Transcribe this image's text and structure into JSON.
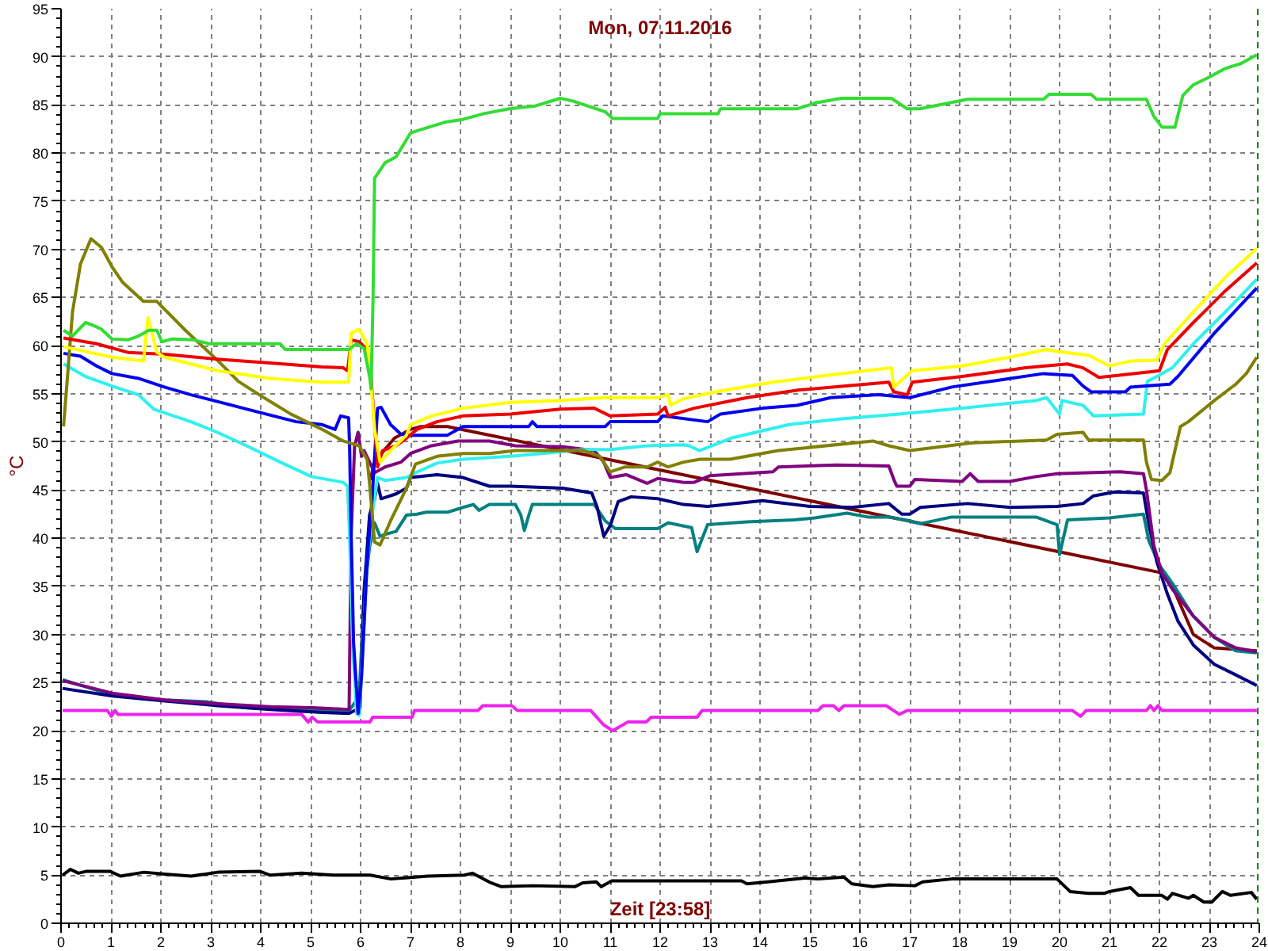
{
  "chart_data": {
    "type": "line",
    "title": "Mon, 07.11.2016",
    "xlabel": "Zeit [23:58]",
    "ylabel": "°C",
    "xlim": [
      0,
      24
    ],
    "ylim": [
      0,
      95
    ],
    "xticks": [
      0,
      1,
      2,
      3,
      4,
      5,
      6,
      7,
      8,
      9,
      10,
      11,
      12,
      13,
      14,
      15,
      16,
      17,
      18,
      19,
      20,
      21,
      22,
      23,
      24
    ],
    "yticks": [
      0,
      5,
      10,
      15,
      20,
      25,
      30,
      35,
      40,
      45,
      50,
      55,
      60,
      65,
      70,
      75,
      80,
      85,
      90,
      95
    ],
    "grid": true,
    "line_style": "solid",
    "ref_lines": [
      {
        "axis": "x",
        "value": 23.97,
        "color": "#008000",
        "line_style": "dashed"
      }
    ],
    "series": [
      {
        "color": "#000000",
        "x": [
          0.03,
          0.19,
          0.35,
          0.51,
          0.98,
          1.19,
          1.66,
          2.08,
          2.61,
          3.14,
          3.98,
          4.19,
          4.82,
          5.45,
          6.19,
          6.61,
          7.35,
          8.08,
          8.24,
          8.61,
          8.82,
          9.45,
          10.29,
          10.45,
          10.72,
          10.82,
          11.03,
          12.0,
          13.63,
          13.74,
          14.16,
          14.89,
          15.16,
          15.68,
          15.84,
          16.26,
          16.58,
          17.1,
          17.26,
          17.84,
          19.95,
          20.21,
          20.58,
          20.89,
          21.0,
          21.42,
          21.58,
          22.05,
          22.16,
          22.26,
          22.58,
          22.68,
          22.89,
          23.05,
          23.26,
          23.42,
          23.84,
          23.95
        ],
        "values": [
          5.0,
          5.6,
          5.2,
          5.4,
          5.4,
          4.9,
          5.3,
          5.1,
          4.9,
          5.3,
          5.4,
          5.0,
          5.2,
          5.0,
          5.0,
          4.6,
          4.9,
          5.0,
          5.2,
          4.2,
          3.8,
          3.9,
          3.8,
          4.2,
          4.3,
          3.8,
          4.4,
          4.4,
          4.4,
          4.1,
          4.3,
          4.7,
          4.6,
          4.8,
          4.1,
          3.8,
          4.0,
          3.9,
          4.3,
          4.6,
          4.6,
          3.3,
          3.1,
          3.1,
          3.3,
          3.7,
          2.9,
          2.9,
          2.5,
          3.1,
          2.6,
          2.9,
          2.2,
          2.2,
          3.3,
          2.9,
          3.2,
          2.5
        ]
      },
      {
        "color": "#ee22ee",
        "x": [
          0.03,
          0.93,
          1.01,
          1.08,
          1.14,
          4.82,
          4.95,
          5.03,
          5.14,
          6.19,
          6.24,
          7.03,
          7.08,
          8.35,
          8.45,
          9.03,
          9.14,
          10.61,
          10.87,
          11.05,
          11.35,
          11.72,
          11.82,
          12.74,
          12.84,
          15.16,
          15.26,
          15.47,
          15.58,
          15.68,
          16.53,
          16.79,
          16.95,
          20.26,
          20.42,
          20.53,
          21.74,
          21.82,
          21.89,
          21.97,
          22.05,
          23.95
        ],
        "values": [
          22.1,
          22.1,
          21.5,
          22.1,
          21.7,
          21.7,
          20.9,
          21.4,
          20.9,
          20.9,
          21.4,
          21.4,
          22.1,
          22.1,
          22.6,
          22.6,
          22.1,
          22.1,
          20.6,
          20.0,
          20.9,
          20.9,
          21.4,
          21.4,
          22.1,
          22.1,
          22.6,
          22.6,
          22.1,
          22.6,
          22.6,
          21.7,
          22.1,
          22.1,
          21.5,
          22.1,
          22.1,
          22.6,
          22.1,
          22.6,
          22.1,
          22.1
        ]
      },
      {
        "color": "#800000",
        "x": [
          6.2,
          6.26,
          6.37,
          6.68,
          7.0,
          7.21,
          7.74,
          22.05,
          22.31,
          22.52,
          22.68,
          23.1,
          23.95
        ],
        "values": [
          46.0,
          47.7,
          48.5,
          50.4,
          51.3,
          51.6,
          51.6,
          36.4,
          34.4,
          31.9,
          30.0,
          28.6,
          28.3
        ]
      },
      {
        "color": "#008080",
        "x": [
          0.03,
          1.03,
          2.08,
          2.93,
          3.67,
          4.61,
          5.77,
          5.97,
          6.07,
          6.18,
          6.28,
          6.39,
          6.49,
          6.71,
          6.92,
          7.13,
          7.32,
          7.74,
          8.05,
          8.26,
          8.37,
          8.58,
          9.1,
          9.21,
          9.28,
          9.37,
          9.44,
          10.68,
          10.9,
          11.1,
          11.95,
          12.16,
          12.63,
          12.74,
          12.95,
          13.74,
          14.68,
          15.1,
          15.74,
          16.16,
          16.58,
          17.0,
          17.21,
          17.84,
          18.26,
          19.53,
          19.95,
          20.0,
          20.16,
          21.0,
          21.68,
          21.79,
          22.0,
          22.26,
          22.68,
          23.1,
          23.53,
          23.95
        ],
        "values": [
          25.3,
          23.7,
          23.2,
          23.0,
          22.4,
          22.2,
          22.1,
          23.5,
          34.1,
          39.1,
          41.6,
          40.2,
          40.4,
          40.7,
          42.4,
          42.5,
          42.7,
          42.7,
          43.2,
          43.5,
          42.9,
          43.5,
          43.5,
          42.4,
          40.8,
          42.4,
          43.5,
          43.5,
          41.8,
          41.0,
          41.0,
          41.6,
          41.1,
          38.6,
          41.4,
          41.7,
          41.9,
          42.1,
          42.6,
          42.2,
          42.2,
          41.8,
          41.5,
          42.2,
          42.2,
          42.2,
          41.4,
          38.3,
          41.9,
          42.1,
          42.5,
          39.7,
          37.2,
          35.3,
          31.9,
          29.7,
          28.3,
          28.1
        ]
      },
      {
        "color": "#000080",
        "x": [
          0.03,
          1.03,
          2.08,
          3.14,
          4.19,
          5.24,
          5.77,
          5.99,
          6.07,
          6.18,
          6.28,
          6.34,
          6.41,
          6.71,
          6.92,
          7.0,
          7.53,
          8.05,
          8.58,
          9.0,
          10.05,
          10.63,
          10.74,
          10.87,
          11.0,
          11.16,
          11.42,
          11.95,
          12.47,
          12.95,
          14.05,
          15.0,
          15.84,
          16.58,
          16.84,
          17.0,
          17.21,
          18.16,
          19.0,
          19.95,
          20.47,
          20.68,
          21.11,
          21.68,
          21.79,
          21.95,
          22.16,
          22.37,
          22.68,
          23.1,
          23.53,
          23.95
        ],
        "values": [
          24.4,
          23.6,
          23.1,
          22.6,
          22.2,
          21.9,
          21.8,
          22.4,
          34.6,
          42.4,
          44.1,
          45.7,
          44.1,
          44.6,
          45.2,
          46.3,
          46.6,
          46.3,
          45.4,
          45.4,
          45.2,
          44.7,
          43.2,
          40.2,
          41.3,
          43.8,
          44.3,
          44.1,
          43.5,
          43.3,
          43.9,
          43.3,
          43.2,
          43.6,
          42.5,
          42.5,
          43.2,
          43.6,
          43.2,
          43.3,
          43.6,
          44.4,
          44.8,
          44.7,
          41.4,
          37.5,
          34.2,
          31.4,
          28.9,
          26.9,
          25.8,
          24.7
        ]
      },
      {
        "color": "#800080",
        "x": [
          0.03,
          1.03,
          2.08,
          3.14,
          4.19,
          5.03,
          5.77,
          5.81,
          5.88,
          5.95,
          6.02,
          6.07,
          6.18,
          6.28,
          6.49,
          6.81,
          7.0,
          7.42,
          7.95,
          8.58,
          9.1,
          10.05,
          10.68,
          10.87,
          11.0,
          11.32,
          11.74,
          11.95,
          12.47,
          12.68,
          13.0,
          14.26,
          14.37,
          15.53,
          16.58,
          16.68,
          16.74,
          17.0,
          17.1,
          18.05,
          18.21,
          18.37,
          19.0,
          19.53,
          19.95,
          20.58,
          21.21,
          21.68,
          21.74,
          21.89,
          22.05,
          22.26,
          22.68,
          23.1,
          23.53,
          23.95
        ],
        "values": [
          25.2,
          23.9,
          23.2,
          22.8,
          22.5,
          22.4,
          22.2,
          40.2,
          49.6,
          51.0,
          48.5,
          49.1,
          47.9,
          46.8,
          47.4,
          47.9,
          48.8,
          49.6,
          50.1,
          50.1,
          49.6,
          49.5,
          49.1,
          47.9,
          46.3,
          46.6,
          45.7,
          46.2,
          45.8,
          45.8,
          46.5,
          46.9,
          47.4,
          47.6,
          47.5,
          46.1,
          45.4,
          45.4,
          46.1,
          45.9,
          46.7,
          45.9,
          45.9,
          46.4,
          46.7,
          46.8,
          46.9,
          46.7,
          45.0,
          39.2,
          36.4,
          34.7,
          31.9,
          29.7,
          28.6,
          28.2
        ]
      },
      {
        "color": "#30f0f0",
        "x": [
          0.05,
          0.49,
          1.02,
          1.55,
          1.86,
          2.6,
          3.13,
          3.76,
          4.39,
          5.02,
          5.65,
          5.74,
          5.78,
          5.84,
          5.92,
          5.97,
          6.02,
          6.13,
          6.23,
          6.34,
          6.49,
          6.92,
          7.1,
          7.53,
          8.05,
          9.0,
          9.63,
          10.47,
          11.0,
          11.74,
          12.47,
          12.58,
          12.79,
          13.42,
          14.58,
          15.63,
          16.79,
          18.05,
          19.53,
          19.74,
          20.0,
          20.05,
          20.47,
          20.68,
          21.68,
          21.76,
          21.95,
          22.26,
          22.68,
          23.32,
          23.95
        ],
        "values": [
          58.1,
          56.8,
          55.8,
          54.9,
          53.4,
          52.1,
          51.0,
          49.5,
          47.9,
          46.4,
          45.8,
          45.4,
          40.2,
          29.1,
          21.8,
          21.6,
          26.3,
          37.4,
          42.4,
          46.3,
          46.0,
          46.3,
          46.8,
          47.8,
          48.2,
          48.5,
          48.8,
          49.2,
          49.2,
          49.6,
          49.7,
          49.6,
          49.1,
          50.4,
          51.8,
          52.4,
          52.9,
          53.5,
          54.3,
          54.6,
          52.9,
          54.3,
          53.8,
          52.7,
          52.9,
          56.3,
          56.8,
          57.7,
          60.2,
          63.5,
          66.9
        ]
      },
      {
        "color": "#0000ee",
        "x": [
          0.05,
          0.39,
          0.71,
          1.02,
          1.55,
          2.07,
          2.6,
          3.13,
          3.65,
          4.18,
          4.71,
          5.23,
          5.49,
          5.6,
          5.76,
          5.78,
          5.81,
          5.86,
          5.95,
          6.02,
          6.13,
          6.23,
          6.34,
          6.41,
          6.6,
          6.81,
          7.0,
          7.74,
          8.05,
          9.37,
          9.44,
          9.53,
          10.9,
          11.0,
          11.95,
          12.05,
          12.95,
          13.21,
          14.05,
          14.74,
          15.42,
          16.37,
          17.0,
          17.84,
          18.89,
          19.68,
          20.26,
          20.47,
          20.63,
          21.32,
          21.42,
          22.21,
          22.37,
          23.1,
          23.95
        ],
        "values": [
          59.2,
          58.9,
          57.9,
          57.1,
          56.6,
          55.7,
          54.9,
          54.2,
          53.5,
          52.8,
          52.1,
          51.8,
          51.3,
          52.7,
          52.5,
          49.6,
          40.7,
          29.1,
          21.8,
          25.7,
          37.4,
          44.1,
          53.5,
          53.6,
          51.8,
          50.8,
          50.7,
          50.7,
          51.6,
          51.6,
          52.1,
          51.6,
          51.6,
          52.1,
          52.1,
          52.7,
          52.1,
          52.9,
          53.5,
          53.8,
          54.6,
          54.9,
          54.6,
          55.7,
          56.5,
          57.1,
          56.9,
          55.8,
          55.2,
          55.2,
          55.7,
          56.0,
          56.8,
          61.3,
          66.0
        ]
      },
      {
        "color": "#808000",
        "x": [
          0.05,
          0.13,
          0.23,
          0.39,
          0.6,
          0.81,
          1.02,
          1.23,
          1.65,
          1.92,
          2.49,
          3.13,
          3.55,
          3.97,
          4.6,
          5.23,
          5.65,
          5.97,
          6.13,
          6.18,
          6.28,
          6.39,
          6.6,
          6.92,
          7.1,
          7.53,
          8.05,
          8.58,
          9.1,
          10.47,
          10.79,
          11.0,
          11.3,
          11.74,
          11.95,
          12.16,
          12.47,
          12.8,
          13.4,
          14.37,
          16.26,
          16.58,
          17.0,
          18.26,
          19.74,
          19.95,
          20.47,
          20.58,
          21.68,
          21.74,
          21.84,
          22.05,
          22.21,
          22.42,
          22.58,
          23.1,
          23.53,
          23.74,
          23.95
        ],
        "values": [
          51.6,
          56.8,
          63.5,
          68.5,
          71.1,
          70.2,
          68.2,
          66.6,
          64.6,
          64.6,
          61.6,
          58.5,
          56.3,
          54.9,
          52.9,
          51.3,
          50.1,
          49.6,
          48.2,
          45.7,
          39.6,
          39.3,
          41.8,
          45.2,
          47.7,
          48.5,
          48.8,
          48.8,
          49.1,
          49.1,
          48.5,
          46.9,
          47.4,
          47.4,
          47.9,
          47.4,
          47.9,
          48.2,
          48.2,
          49.1,
          50.1,
          49.6,
          49.1,
          49.9,
          50.2,
          50.8,
          51.0,
          50.2,
          50.2,
          47.9,
          46.1,
          46.0,
          46.8,
          51.6,
          52.1,
          54.3,
          56.0,
          57.1,
          58.8
        ]
      },
      {
        "color": "#ee0000",
        "x": [
          0.05,
          0.71,
          1.34,
          2.07,
          3.13,
          4.18,
          5.23,
          5.65,
          5.74,
          5.81,
          5.97,
          6.13,
          6.2,
          6.28,
          6.34,
          6.44,
          6.71,
          6.92,
          7.13,
          7.53,
          8.05,
          9.0,
          10.0,
          10.68,
          11.0,
          11.95,
          12.1,
          12.16,
          12.68,
          13.74,
          14.79,
          16.58,
          16.68,
          16.95,
          17.05,
          18.05,
          19.32,
          20.16,
          20.47,
          20.79,
          21.84,
          22.0,
          22.16,
          22.68,
          23.32,
          23.95
        ],
        "values": [
          60.8,
          60.2,
          59.3,
          59.1,
          58.6,
          58.2,
          57.8,
          57.7,
          57.4,
          60.6,
          60.4,
          59.6,
          57.4,
          51.8,
          47.4,
          49.1,
          49.6,
          50.4,
          51.3,
          52.1,
          52.7,
          52.9,
          53.4,
          53.5,
          52.7,
          52.9,
          53.6,
          52.7,
          53.5,
          54.6,
          55.4,
          56.2,
          55.2,
          54.9,
          56.2,
          56.8,
          57.7,
          58.1,
          57.7,
          56.7,
          57.3,
          57.4,
          59.6,
          62.4,
          65.7,
          68.6
        ]
      },
      {
        "color": "#ffff00",
        "x": [
          0.05,
          1.02,
          1.65,
          1.74,
          1.81,
          1.92,
          2.07,
          3.13,
          4.18,
          5.23,
          5.76,
          5.81,
          5.97,
          6.13,
          6.2,
          6.28,
          6.39,
          6.6,
          6.92,
          7.0,
          7.42,
          8.05,
          9.0,
          9.95,
          10.9,
          11.95,
          12.16,
          12.21,
          12.47,
          13.21,
          14.26,
          15.32,
          16.63,
          16.68,
          17.05,
          18.05,
          19.0,
          19.74,
          19.95,
          20.58,
          21.0,
          21.42,
          21.95,
          22.1,
          22.68,
          23.32,
          23.95
        ],
        "values": [
          59.9,
          58.8,
          58.4,
          62.9,
          61.6,
          59.3,
          58.8,
          57.4,
          56.6,
          56.2,
          56.2,
          61.3,
          61.7,
          60.2,
          56.8,
          51.3,
          47.9,
          49.1,
          50.7,
          51.8,
          52.7,
          53.5,
          54.1,
          54.3,
          54.6,
          54.6,
          54.9,
          53.8,
          54.5,
          55.3,
          56.2,
          56.9,
          57.7,
          55.7,
          57.4,
          57.9,
          58.8,
          59.6,
          59.4,
          59.0,
          57.9,
          58.4,
          58.5,
          60.2,
          63.5,
          67.1,
          70.1
        ]
      },
      {
        "color": "#33dd33",
        "x": [
          0.05,
          0.23,
          0.49,
          0.65,
          0.81,
          1.02,
          1.34,
          1.55,
          1.76,
          1.92,
          2.02,
          2.23,
          2.65,
          2.97,
          4.39,
          4.49,
          5.76,
          5.92,
          6.07,
          6.18,
          6.21,
          6.25,
          6.28,
          6.49,
          6.71,
          7.0,
          7.37,
          7.68,
          8.05,
          8.47,
          8.98,
          9.5,
          10.0,
          10.26,
          10.9,
          11.05,
          11.95,
          12.0,
          13.16,
          13.21,
          14.74,
          15.1,
          15.63,
          16.63,
          16.95,
          17.2,
          18.16,
          19.68,
          19.79,
          20.63,
          20.74,
          21.74,
          21.89,
          22.05,
          22.31,
          22.47,
          22.68,
          23.0,
          23.32,
          23.63,
          23.95
        ],
        "values": [
          61.6,
          61.0,
          62.4,
          62.1,
          61.7,
          60.7,
          60.6,
          61.0,
          61.6,
          61.6,
          60.4,
          60.7,
          60.6,
          60.2,
          60.2,
          59.6,
          59.6,
          60.2,
          59.7,
          56.8,
          55.5,
          65.0,
          77.4,
          79.0,
          79.6,
          82.1,
          82.7,
          83.2,
          83.5,
          84.1,
          84.6,
          84.9,
          85.7,
          85.4,
          84.3,
          83.6,
          83.6,
          84.1,
          84.1,
          84.6,
          84.6,
          85.2,
          85.7,
          85.7,
          84.6,
          84.6,
          85.6,
          85.6,
          86.1,
          86.1,
          85.6,
          85.6,
          83.8,
          82.7,
          82.7,
          86.0,
          87.1,
          87.9,
          88.8,
          89.3,
          90.2
        ]
      }
    ]
  }
}
